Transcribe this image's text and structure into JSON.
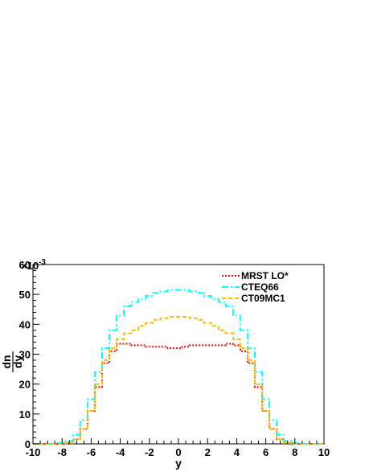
{
  "chart_data": {
    "type": "line",
    "title": "",
    "xlabel": "y",
    "ylabel_numerator": "dn",
    "ylabel_denominator": "dy",
    "y_multiplier": "×10",
    "y_multiplier_exponent": "-3",
    "xlim": [
      -10,
      10
    ],
    "ylim": [
      0,
      60
    ],
    "x_ticks": [
      "-10",
      "-8",
      "-6",
      "-4",
      "-2",
      "0",
      "2",
      "4",
      "6",
      "8",
      "10"
    ],
    "y_ticks": [
      "0",
      "10",
      "20",
      "30",
      "40",
      "50",
      "60"
    ],
    "grid": false,
    "legend_position": "top-right",
    "x": [
      -10,
      -9.5,
      -9,
      -8.5,
      -8,
      -7.5,
      -7,
      -6.5,
      -6,
      -5.5,
      -5,
      -4.5,
      -4,
      -3.5,
      -3,
      -2.5,
      -2,
      -1.5,
      -1,
      -0.5,
      0,
      0.5,
      1,
      1.5,
      2,
      2.5,
      3,
      3.5,
      4,
      4.5,
      5,
      5.5,
      6,
      6.5,
      7,
      7.5,
      8,
      8.5,
      9,
      9.5,
      10
    ],
    "series": [
      {
        "name": "MRST LO*",
        "color": "#ff0000",
        "style": "dotted",
        "values": [
          0,
          0,
          0,
          0,
          0,
          0.3,
          1.5,
          5,
          11,
          19,
          27,
          31,
          33.5,
          33.5,
          33,
          33,
          32.5,
          32.5,
          32.5,
          32,
          32,
          32.5,
          33,
          33,
          33,
          33,
          33,
          33.5,
          33,
          31,
          27,
          19,
          11,
          5,
          1.5,
          0.3,
          0,
          0,
          0,
          0,
          0
        ]
      },
      {
        "name": "CTEQ66",
        "color": "#00ffff",
        "style": "dash-dot",
        "values": [
          0,
          0,
          0,
          0,
          0.3,
          1,
          3,
          8,
          15,
          24,
          32,
          38,
          43,
          46,
          47.5,
          48.5,
          49.5,
          50.5,
          51,
          51.5,
          51.5,
          51.5,
          51,
          50.5,
          49.5,
          48.5,
          47.5,
          46,
          43,
          38,
          32,
          24,
          15,
          8,
          3,
          1,
          0.3,
          0,
          0,
          0,
          0
        ]
      },
      {
        "name": "CT09MC1",
        "color": "#ffbb00",
        "style": "dashed",
        "values": [
          0,
          0,
          0,
          0,
          0,
          0.3,
          1.5,
          5,
          11,
          20,
          28,
          32,
          35,
          37,
          38,
          39.5,
          40.5,
          41.5,
          42,
          42.5,
          42.5,
          42.5,
          42,
          41.5,
          40.5,
          39.5,
          38,
          37,
          35,
          32,
          28,
          20,
          11,
          5,
          1.5,
          0.3,
          0,
          0,
          0,
          0,
          0
        ]
      }
    ]
  }
}
